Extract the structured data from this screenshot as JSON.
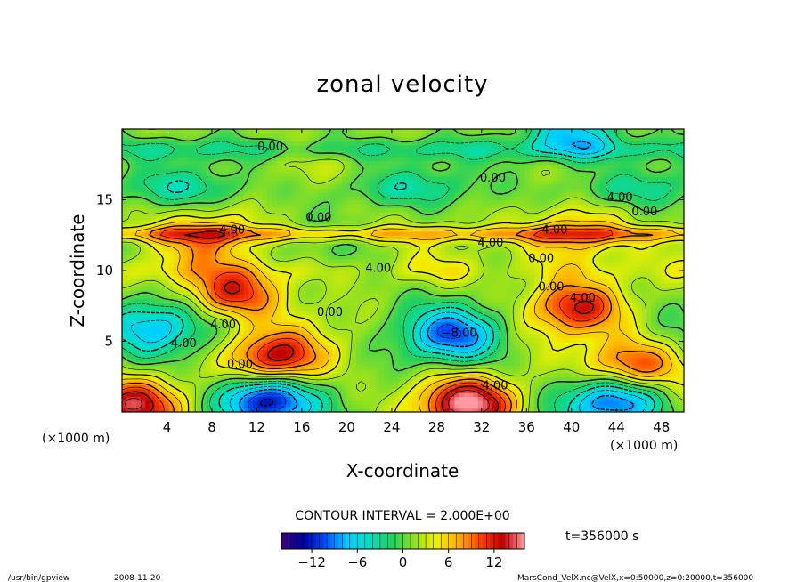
{
  "chart_data": {
    "type": "heatmap",
    "title": "zonal velocity",
    "xlabel": "X-coordinate",
    "ylabel": "Z-coordinate",
    "x_unit": "(×1000 m)",
    "y_unit": "(×1000 m)",
    "xlim": [
      0,
      50
    ],
    "ylim": [
      0,
      20
    ],
    "x_ticks": [
      4,
      8,
      12,
      16,
      20,
      24,
      28,
      32,
      36,
      40,
      44,
      48
    ],
    "y_ticks": [
      5,
      10,
      15
    ],
    "contour_interval_text": "CONTOUR INTERVAL = 2.000E+00",
    "time_text": "t=356000 s",
    "colorbar": {
      "min": -16,
      "max": 16,
      "ticks": [
        -12,
        -6,
        0,
        6,
        12
      ],
      "tick_labels": [
        "−12",
        "−6",
        "0",
        "6",
        "12"
      ]
    },
    "features": [
      {
        "name": "positive jet",
        "x": 10,
        "z": 8.5,
        "value": 10
      },
      {
        "name": "positive jet near ground",
        "x": 13.5,
        "z": 3.8,
        "value": 12
      },
      {
        "name": "positive jet",
        "x": 40.5,
        "z": 7.5,
        "value": 10
      },
      {
        "name": "positive jet",
        "x": 45.5,
        "z": 3.2,
        "value": 10
      },
      {
        "name": "positive jet near ground",
        "x": 31,
        "z": 0.6,
        "value": 14
      },
      {
        "name": "positive jet near ground",
        "x": 0.8,
        "z": 0.5,
        "value": 12
      },
      {
        "name": "negative jet",
        "x": 29.5,
        "z": 5.5,
        "value": -10
      },
      {
        "name": "negative jet near ground",
        "x": 12.5,
        "z": 0.8,
        "value": -14
      },
      {
        "name": "negative jet near ground",
        "x": 44,
        "z": 0.8,
        "value": -12
      },
      {
        "name": "negative jet",
        "x": 2.5,
        "z": 6,
        "value": -8
      },
      {
        "name": "upper band positive",
        "x": 40,
        "z": 12.4,
        "value": 8
      },
      {
        "name": "upper band positive",
        "x": 8,
        "z": 12.4,
        "value": 6
      },
      {
        "name": "upper negative",
        "x": 40,
        "z": 19.5,
        "value": -8
      }
    ],
    "contour_labels": [
      {
        "text": "0.00",
        "x": 13.2,
        "z": 18.5
      },
      {
        "text": "0.00",
        "x": 33.0,
        "z": 16.3
      },
      {
        "text": "4.00",
        "x": 44.3,
        "z": 14.9
      },
      {
        "text": "0.00",
        "x": 46.5,
        "z": 13.9
      },
      {
        "text": "0.00",
        "x": 17.5,
        "z": 13.5
      },
      {
        "text": "4.00",
        "x": 9.8,
        "z": 12.6
      },
      {
        "text": "4.00",
        "x": 38.5,
        "z": 12.6
      },
      {
        "text": "4.00",
        "x": 32.8,
        "z": 11.7
      },
      {
        "text": "0.00",
        "x": 37.3,
        "z": 10.6
      },
      {
        "text": "4.00",
        "x": 22.8,
        "z": 9.9
      },
      {
        "text": "0.00",
        "x": 38.2,
        "z": 8.6
      },
      {
        "text": "4.00",
        "x": 41.0,
        "z": 7.8
      },
      {
        "text": "0.00",
        "x": 18.5,
        "z": 6.8
      },
      {
        "text": "4.00",
        "x": 9.0,
        "z": 5.9
      },
      {
        "text": "−8.00",
        "x": 30.0,
        "z": 5.3
      },
      {
        "text": "4.00",
        "x": 5.5,
        "z": 4.6
      },
      {
        "text": "0.00",
        "x": 10.5,
        "z": 3.1
      },
      {
        "text": "4.00",
        "x": 33.2,
        "z": 1.6
      }
    ]
  },
  "footer": {
    "program": "/usr/bin/gpview",
    "date": "2008-11-20",
    "source": "MarsCond_VelX.nc@VelX,x=0:50000,z=0:20000,t=356000"
  },
  "colors": {
    "colormap": [
      "#3d0080",
      "#00009a",
      "#0050ff",
      "#00cfff",
      "#00e0c0",
      "#20d060",
      "#90e020",
      "#f0f000",
      "#ffb000",
      "#ff4000",
      "#c00000",
      "#ff9aa0"
    ]
  }
}
